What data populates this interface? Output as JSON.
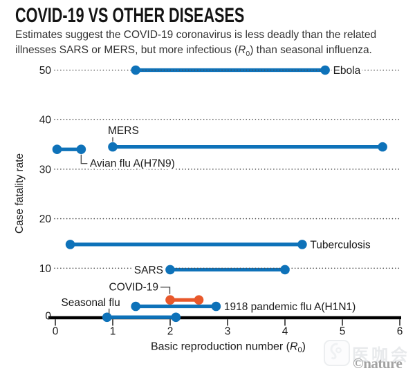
{
  "header": {
    "title": "COVID-19 VS OTHER DISEASES",
    "subtitle": {
      "line1": "Estimates suggest the COVID-19 coronavirus is less deadly than the related",
      "line2_pre": "illnesses SARS or MERS, but more infectious (",
      "r0_symbol": "R",
      "r0_subscript": "0",
      "line2_post": ") than seasonal influenza."
    }
  },
  "chart_data": {
    "type": "line",
    "subtype": "dumbbell-horizontal-range",
    "title": "COVID-19 VS OTHER DISEASES",
    "xlabel": "Basic reproduction number (R0)",
    "xlabel_parts": {
      "pre": "Basic reproduction number (",
      "symbol": "R",
      "subscript": "0",
      "post": ")"
    },
    "ylabel": "Case fatality rate",
    "xlim": [
      0,
      6
    ],
    "ylim": [
      0,
      50
    ],
    "x_ticks": [
      0,
      1,
      2,
      3,
      4,
      5,
      6
    ],
    "y_ticks": [
      0,
      10,
      20,
      30,
      40,
      50
    ],
    "grid": "horizontal dotted",
    "legend": "none",
    "series": [
      {
        "name": "Ebola",
        "r0": [
          1.4,
          4.7
        ],
        "cfr": 50,
        "color": "#0E72B9",
        "label_pos": "right"
      },
      {
        "name": "MERS",
        "r0": [
          1.0,
          5.7
        ],
        "cfr": 34.5,
        "color": "#0E72B9",
        "label_pos": "callout-above-start"
      },
      {
        "name": "Avian flu A(H7N9)",
        "r0": [
          0.03,
          0.45
        ],
        "cfr": 34,
        "color": "#0E72B9",
        "label_pos": "callout-below-end"
      },
      {
        "name": "Tuberculosis",
        "r0": [
          0.26,
          4.3
        ],
        "cfr": 14.8,
        "color": "#0E72B9",
        "label_pos": "right"
      },
      {
        "name": "SARS",
        "r0": [
          2.0,
          4.0
        ],
        "cfr": 9.7,
        "color": "#0E72B9",
        "label_pos": "left"
      },
      {
        "name": "COVID-19",
        "r0": [
          2.0,
          2.5
        ],
        "cfr": 3.6,
        "color": "#E8582B",
        "label_pos": "callout-left-elbow"
      },
      {
        "name": "1918 pandemic flu A(H1N1)",
        "r0": [
          1.4,
          2.8
        ],
        "cfr": 2.3,
        "color": "#0E72B9",
        "label_pos": "right"
      },
      {
        "name": "Seasonal flu",
        "r0": [
          0.9,
          2.1
        ],
        "cfr": 0.1,
        "color": "#0E72B9",
        "label_pos": "above-start"
      }
    ]
  },
  "watermark": {
    "brand_cjk": "医咖会",
    "credit": "©nature"
  },
  "colors": {
    "line_blue": "#0E72B9",
    "line_orange": "#E8582B",
    "grid_dots": "#4d4d4d",
    "axis": "#000000",
    "connector": "#4a4a4a",
    "text": "#1a1a1a",
    "subtitle_text": "#333333",
    "watermark_gray": "#a2a2a2",
    "watermark_light": "#e8eaec"
  }
}
